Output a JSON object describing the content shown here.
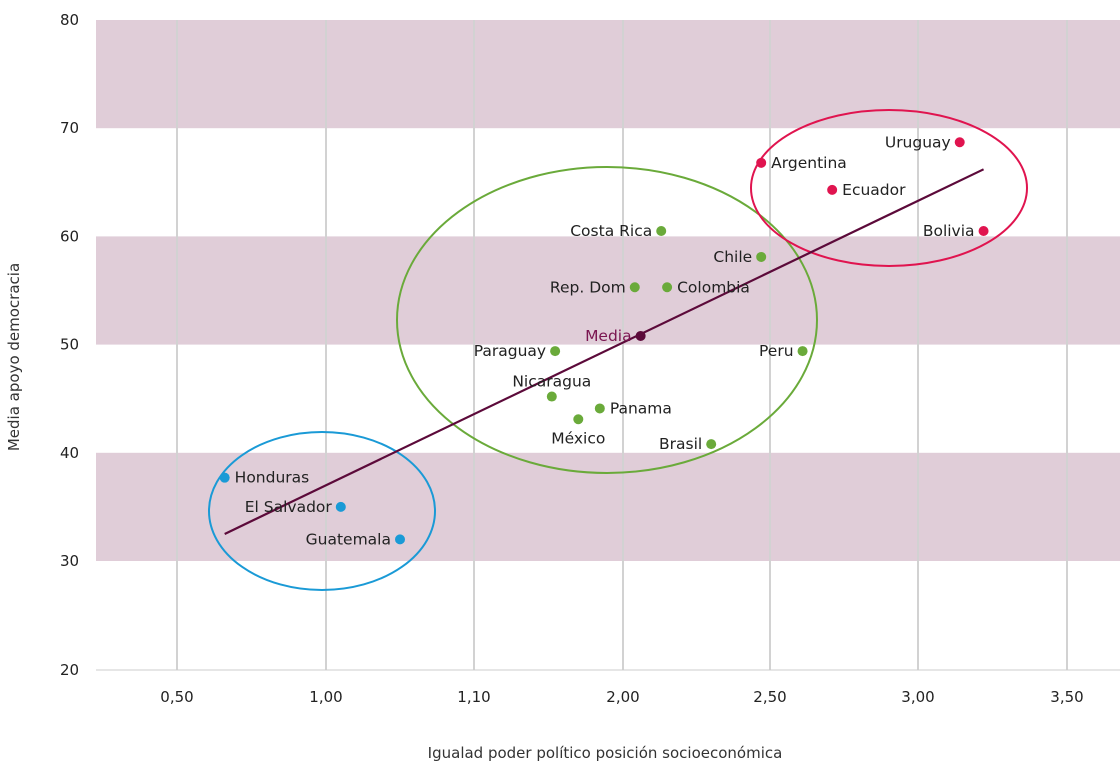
{
  "chart_data": {
    "type": "scatter",
    "title": "",
    "xlabel": "Igualad poder político posición socioeconómica",
    "ylabel": "Media apoyo democracia",
    "x_ticks": [
      "0,50",
      "1,00",
      "1,10",
      "2,00",
      "2,50",
      "3,00",
      "3,50"
    ],
    "y_ticks": [
      "20",
      "30",
      "40",
      "50",
      "60",
      "70",
      "80"
    ],
    "ylim": [
      20,
      80
    ],
    "grid": "vertical lines with alternating horizontal bands",
    "colors": {
      "band": "#e0cdd8",
      "grid": "#d2d2d2",
      "trend": "#5c0a3a",
      "blue": "#1a9ad6",
      "green": "#6aaa3a",
      "red": "#e0144f",
      "mean_label": "#7a1550"
    },
    "groups": [
      {
        "color": "blue",
        "points": [
          {
            "label": "Honduras",
            "x": 0.66,
            "y": 37.7
          },
          {
            "label": "El Salvador",
            "x": 1.01,
            "y": 35.0
          },
          {
            "label": "Guatemala",
            "x": 1.05,
            "y": 32.0
          }
        ]
      },
      {
        "color": "green",
        "points": [
          {
            "label": "Costa Rica",
            "x": 2.13,
            "y": 60.5
          },
          {
            "label": "Chile",
            "x": 2.47,
            "y": 58.1
          },
          {
            "label": "Rep. Dom",
            "x": 2.04,
            "y": 55.3
          },
          {
            "label": "Colombia",
            "x": 2.15,
            "y": 55.3
          },
          {
            "label": "Paraguay",
            "x": 1.59,
            "y": 49.4
          },
          {
            "label": "Peru",
            "x": 2.61,
            "y": 49.4
          },
          {
            "label": "Nicaragua",
            "x": 1.57,
            "y": 45.2
          },
          {
            "label": "Panama",
            "x": 1.86,
            "y": 44.1
          },
          {
            "label": "México",
            "x": 1.73,
            "y": 43.1
          },
          {
            "label": "Brasil",
            "x": 2.3,
            "y": 40.8
          }
        ]
      },
      {
        "color": "red",
        "points": [
          {
            "label": "Uruguay",
            "x": 3.14,
            "y": 68.7
          },
          {
            "label": "Argentina",
            "x": 2.47,
            "y": 66.8
          },
          {
            "label": "Ecuador",
            "x": 2.71,
            "y": 64.3
          },
          {
            "label": "Bolivia",
            "x": 3.22,
            "y": 60.5
          }
        ]
      }
    ],
    "mean": {
      "label": "Media",
      "x": 2.06,
      "y": 50.8
    },
    "trendline": {
      "from": {
        "x": 0.66,
        "y": 32.5
      },
      "to": {
        "x": 3.22,
        "y": 66.2
      }
    }
  }
}
